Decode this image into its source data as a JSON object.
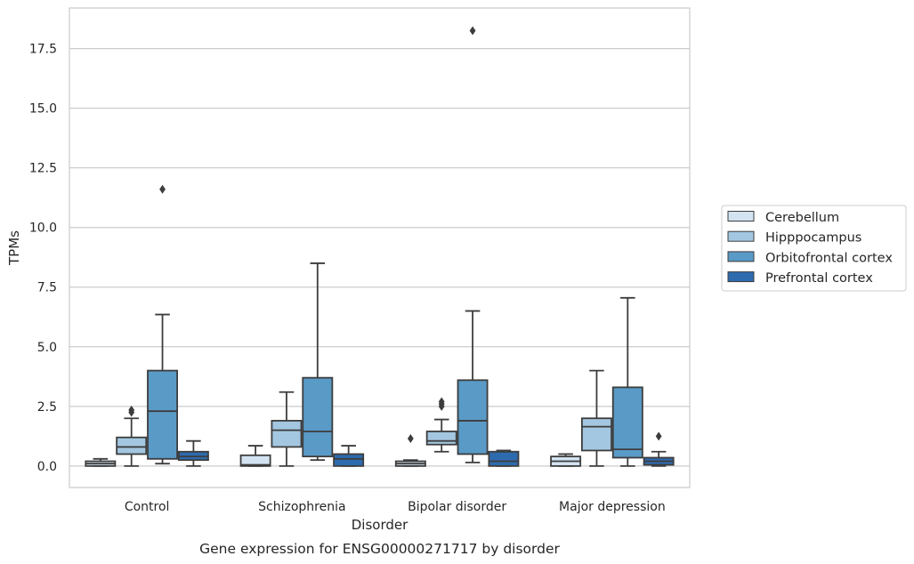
{
  "chart_data": {
    "type": "boxplot",
    "title": "",
    "caption": "Gene expression for ENSG00000271717 by disorder",
    "xlabel": "Disorder",
    "ylabel": "TPMs",
    "ylim": [
      -0.9,
      19.2
    ],
    "yticks": [
      0.0,
      2.5,
      5.0,
      7.5,
      10.0,
      12.5,
      15.0,
      17.5
    ],
    "ytick_labels": [
      "0.0",
      "2.5",
      "5.0",
      "7.5",
      "10.0",
      "12.5",
      "15.0",
      "17.5"
    ],
    "grid": "horizontal",
    "legend_position": "right",
    "categories": [
      "Control",
      "Schizophrenia",
      "Bipolar disorder",
      "Major depression"
    ],
    "series": [
      {
        "name": "Cerebellum",
        "color": "#d4e3f1",
        "boxes": [
          {
            "whislo": 0.0,
            "q1": 0.0,
            "med": 0.1,
            "q3": 0.2,
            "whishi": 0.3,
            "fliers": []
          },
          {
            "whislo": 0.0,
            "q1": 0.0,
            "med": 0.05,
            "q3": 0.45,
            "whishi": 0.85,
            "fliers": []
          },
          {
            "whislo": 0.0,
            "q1": 0.0,
            "med": 0.1,
            "q3": 0.2,
            "whishi": 0.25,
            "fliers": [
              1.15
            ]
          },
          {
            "whislo": 0.0,
            "q1": 0.0,
            "med": 0.2,
            "q3": 0.4,
            "whishi": 0.5,
            "fliers": []
          }
        ]
      },
      {
        "name": "Hipppocampus",
        "color": "#a3c7e0",
        "boxes": [
          {
            "whislo": 0.0,
            "q1": 0.5,
            "med": 0.8,
            "q3": 1.2,
            "whishi": 2.0,
            "fliers": [
              2.25,
              2.35
            ]
          },
          {
            "whislo": 0.0,
            "q1": 0.8,
            "med": 1.5,
            "q3": 1.9,
            "whishi": 3.1,
            "fliers": []
          },
          {
            "whislo": 0.6,
            "q1": 0.9,
            "med": 1.05,
            "q3": 1.45,
            "whishi": 1.95,
            "fliers": [
              2.5,
              2.6,
              2.7
            ]
          },
          {
            "whislo": 0.0,
            "q1": 0.65,
            "med": 1.65,
            "q3": 2.0,
            "whishi": 4.0,
            "fliers": []
          }
        ]
      },
      {
        "name": "Orbitofrontal cortex",
        "color": "#5a9ac6",
        "boxes": [
          {
            "whislo": 0.1,
            "q1": 0.3,
            "med": 2.3,
            "q3": 4.0,
            "whishi": 6.35,
            "fliers": [
              11.6
            ]
          },
          {
            "whislo": 0.25,
            "q1": 0.4,
            "med": 1.45,
            "q3": 3.7,
            "whishi": 8.5,
            "fliers": []
          },
          {
            "whislo": 0.15,
            "q1": 0.5,
            "med": 1.9,
            "q3": 3.6,
            "whishi": 6.5,
            "fliers": [
              18.25
            ]
          },
          {
            "whislo": 0.0,
            "q1": 0.35,
            "med": 0.7,
            "q3": 3.3,
            "whishi": 7.05,
            "fliers": []
          }
        ]
      },
      {
        "name": "Prefrontal cortex",
        "color": "#2e6bae",
        "boxes": [
          {
            "whislo": 0.0,
            "q1": 0.25,
            "med": 0.4,
            "q3": 0.6,
            "whishi": 1.05,
            "fliers": []
          },
          {
            "whislo": 0.0,
            "q1": 0.0,
            "med": 0.3,
            "q3": 0.5,
            "whishi": 0.85,
            "fliers": []
          },
          {
            "whislo": 0.0,
            "q1": 0.0,
            "med": 0.2,
            "q3": 0.6,
            "whishi": 0.65,
            "fliers": []
          },
          {
            "whislo": 0.0,
            "q1": 0.05,
            "med": 0.2,
            "q3": 0.35,
            "whishi": 0.6,
            "fliers": [
              1.25
            ]
          }
        ]
      }
    ]
  }
}
